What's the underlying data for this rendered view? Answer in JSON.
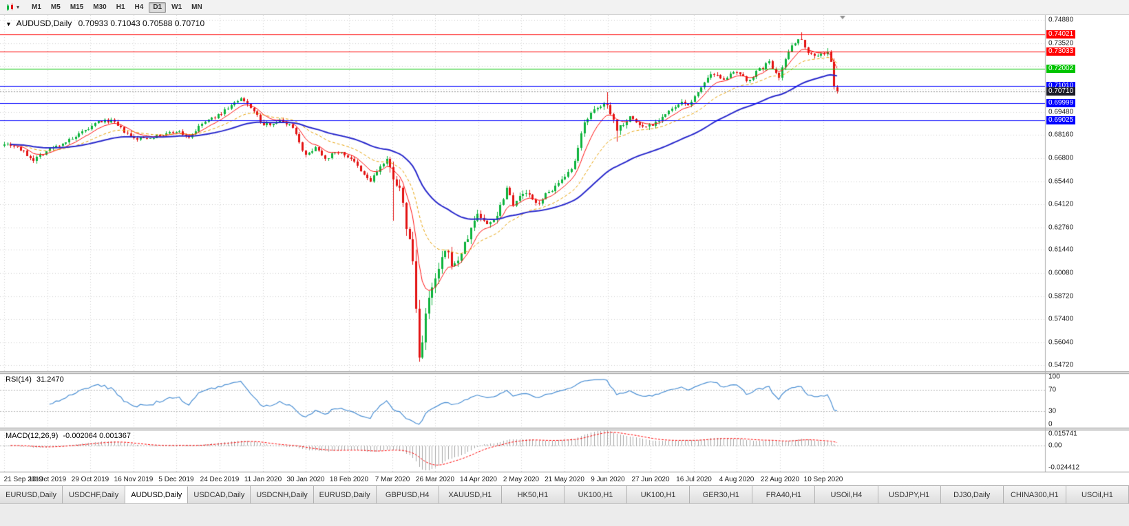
{
  "toolbar": {
    "timeframes": [
      {
        "label": "M1",
        "active": false
      },
      {
        "label": "M5",
        "active": false
      },
      {
        "label": "M15",
        "active": false
      },
      {
        "label": "M30",
        "active": false
      },
      {
        "label": "H1",
        "active": false
      },
      {
        "label": "H4",
        "active": false
      },
      {
        "label": "D1",
        "active": true
      },
      {
        "label": "W1",
        "active": false
      },
      {
        "label": "MN",
        "active": false
      }
    ]
  },
  "chart": {
    "collapse_icon": "▼",
    "title_symbol": "AUDUSD,Daily",
    "ohlc_text": "0.70933 0.71043 0.70588 0.70710",
    "ohlc": {
      "open": "0.70933",
      "high": "0.71043",
      "low": "0.70588",
      "close": "0.70710"
    }
  },
  "chart_data": {
    "type": "candlestick",
    "symbol": "AUDUSD",
    "timeframe": "Daily",
    "grid": true,
    "x_labels": [
      "21 Sep 2019",
      "10 Oct 2019",
      "29 Oct 2019",
      "16 Nov 2019",
      "5 Dec 2019",
      "24 Dec 2019",
      "11 Jan 2020",
      "30 Jan 2020",
      "18 Feb 2020",
      "7 Mar 2020",
      "26 Mar 2020",
      "14 Apr 2020",
      "2 May 2020",
      "21 May 2020",
      "9 Jun 2020",
      "27 Jun 2020",
      "16 Jul 2020",
      "4 Aug 2020",
      "22 Aug 2020",
      "10 Sep 2020"
    ],
    "price_axis": {
      "min": 0.5435,
      "max": 0.7515,
      "labels": [
        "0.74880",
        "0.73520",
        "0.72160",
        "0.70800",
        "0.69480",
        "0.68160",
        "0.66800",
        "0.65440",
        "0.64120",
        "0.62760",
        "0.61440",
        "0.60080",
        "0.58720",
        "0.57400",
        "0.56040",
        "0.54720"
      ]
    },
    "hlines": [
      {
        "value": 0.74021,
        "label": "0.74021",
        "color": "#ff0000"
      },
      {
        "value": 0.73033,
        "label": "0.73033",
        "color": "#ff0000"
      },
      {
        "value": 0.72002,
        "label": "0.72002",
        "color": "#00c400"
      },
      {
        "value": 0.7101,
        "label": "0.71010",
        "color": "#0000ff"
      },
      {
        "value": 0.69999,
        "label": "0.69999",
        "color": "#0000ff"
      },
      {
        "value": 0.69025,
        "label": "0.69025",
        "color": "#0000ff"
      }
    ],
    "current_price": {
      "value": 0.7071,
      "label": "0.70710",
      "tag_color": "#1c1c28",
      "line_color": "#8a8a8a"
    },
    "moving_averages": [
      {
        "period": 8,
        "color": "#ff1010",
        "width": 1,
        "dash": []
      },
      {
        "period": 21,
        "color": "#e8a000",
        "width": 1,
        "dash": [
          4,
          3
        ]
      },
      {
        "period": 50,
        "color": "#2828cc",
        "width": 2,
        "dash": []
      }
    ],
    "candles": {
      "num_bars": 258,
      "bars_per_label": 13.3,
      "seed": 7,
      "up_color": "#0db33c",
      "down_color": "#e31212",
      "anchors": [
        [
          0,
          0.677,
          0.003
        ],
        [
          4,
          0.6745,
          0.003
        ],
        [
          7,
          0.67,
          0.0032
        ],
        [
          9,
          0.6672,
          0.0032
        ],
        [
          13,
          0.672,
          0.003
        ],
        [
          17,
          0.676,
          0.0028
        ],
        [
          21,
          0.679,
          0.0028
        ],
        [
          25,
          0.684,
          0.0028
        ],
        [
          29,
          0.689,
          0.0028
        ],
        [
          33,
          0.69,
          0.0026
        ],
        [
          36,
          0.685,
          0.0026
        ],
        [
          40,
          0.679,
          0.0026
        ],
        [
          44,
          0.68,
          0.0024
        ],
        [
          48,
          0.681,
          0.0024
        ],
        [
          53,
          0.684,
          0.0026
        ],
        [
          57,
          0.68,
          0.0026
        ],
        [
          61,
          0.688,
          0.0026
        ],
        [
          66,
          0.693,
          0.0026
        ],
        [
          70,
          0.699,
          0.0026
        ],
        [
          73,
          0.7023,
          0.0026
        ],
        [
          76,
          0.698,
          0.0028
        ],
        [
          80,
          0.687,
          0.0028
        ],
        [
          85,
          0.69,
          0.0025
        ],
        [
          89,
          0.6865,
          0.0025
        ],
        [
          93,
          0.669,
          0.003
        ],
        [
          96,
          0.6748,
          0.0028
        ],
        [
          99,
          0.668,
          0.0028
        ],
        [
          103,
          0.6718,
          0.0026
        ],
        [
          107,
          0.668,
          0.0028
        ],
        [
          110,
          0.66,
          0.003
        ],
        [
          113,
          0.6545,
          0.0038
        ],
        [
          116,
          0.663,
          0.0042
        ],
        [
          118,
          0.666,
          0.005
        ],
        [
          120,
          0.658,
          0.0085
        ],
        [
          122,
          0.649,
          0.0075
        ],
        [
          124,
          0.629,
          0.011
        ],
        [
          126,
          0.608,
          0.013
        ],
        [
          128,
          0.551,
          0.015
        ],
        [
          130,
          0.577,
          0.0125
        ],
        [
          133,
          0.597,
          0.01
        ],
        [
          136,
          0.613,
          0.0085
        ],
        [
          139,
          0.605,
          0.0075
        ],
        [
          142,
          0.617,
          0.0065
        ],
        [
          146,
          0.636,
          0.0058
        ],
        [
          149,
          0.629,
          0.0052
        ],
        [
          152,
          0.635,
          0.0048
        ],
        [
          155,
          0.651,
          0.0046
        ],
        [
          157,
          0.642,
          0.0045
        ],
        [
          161,
          0.648,
          0.0042
        ],
        [
          164,
          0.641,
          0.004
        ],
        [
          169,
          0.65,
          0.0038
        ],
        [
          173,
          0.656,
          0.0038
        ],
        [
          176,
          0.665,
          0.004
        ],
        [
          179,
          0.69,
          0.0042
        ],
        [
          183,
          0.697,
          0.0042
        ],
        [
          186,
          0.7,
          0.0044
        ],
        [
          189,
          0.685,
          0.005
        ],
        [
          193,
          0.692,
          0.004
        ],
        [
          197,
          0.686,
          0.0038
        ],
        [
          200,
          0.688,
          0.0036
        ],
        [
          205,
          0.695,
          0.0034
        ],
        [
          209,
          0.7,
          0.0034
        ],
        [
          212,
          0.7,
          0.0032
        ],
        [
          215,
          0.71,
          0.0034
        ],
        [
          218,
          0.716,
          0.0034
        ],
        [
          222,
          0.715,
          0.0032
        ],
        [
          226,
          0.718,
          0.0032
        ],
        [
          229,
          0.713,
          0.0032
        ],
        [
          232,
          0.718,
          0.0032
        ],
        [
          236,
          0.724,
          0.0032
        ],
        [
          239,
          0.716,
          0.0032
        ],
        [
          243,
          0.735,
          0.0034
        ],
        [
          246,
          0.7375,
          0.0036
        ],
        [
          248,
          0.73,
          0.0036
        ],
        [
          250,
          0.728,
          0.0032
        ],
        [
          253,
          0.729,
          0.0032
        ],
        [
          254,
          0.73,
          0.0034
        ],
        [
          255,
          0.724,
          0.004
        ],
        [
          256,
          0.709,
          0.0046
        ],
        [
          257,
          0.7071,
          0.004
        ]
      ],
      "spikes": [
        {
          "bar": 120,
          "low": 0.6313
        },
        {
          "bar": 128,
          "low": 0.5506
        },
        {
          "bar": 186,
          "high": 0.7064
        },
        {
          "bar": 189,
          "low": 0.6777
        },
        {
          "bar": 246,
          "high": 0.7413
        }
      ],
      "last_candle": {
        "open": 0.70933,
        "high": 0.71043,
        "low": 0.70588,
        "close": 0.7071
      }
    },
    "rsi": {
      "label": "RSI(14)",
      "value_text": "31.2470",
      "period": 14,
      "color": "#4a8fd4",
      "levels": [
        70,
        30
      ],
      "axis_labels": [
        "100",
        "70",
        "30",
        "0"
      ]
    },
    "macd": {
      "label": "MACD(12,26,9)",
      "values_text": "-0.002064 0.001367",
      "fast": 12,
      "slow": 26,
      "signal_period": 9,
      "histogram_color": "#a6a6a6",
      "signal_color": "#ff0000",
      "axis_labels": [
        "0.015741",
        "0.00",
        "-0.024412"
      ]
    }
  },
  "tabs": [
    {
      "label": "EURUSD,Daily",
      "active": false
    },
    {
      "label": "USDCHF,Daily",
      "active": false
    },
    {
      "label": "AUDUSD,Daily",
      "active": true
    },
    {
      "label": "USDCAD,Daily",
      "active": false
    },
    {
      "label": "USDCNH,Daily",
      "active": false
    },
    {
      "label": "EURUSD,Daily",
      "active": false
    },
    {
      "label": "GBPUSD,H4",
      "active": false
    },
    {
      "label": "XAUUSD,H1",
      "active": false
    },
    {
      "label": "HK50,H1",
      "active": false
    },
    {
      "label": "UK100,H1",
      "active": false
    },
    {
      "label": "UK100,H1",
      "active": false
    },
    {
      "label": "GER30,H1",
      "active": false
    },
    {
      "label": "FRA40,H1",
      "active": false
    },
    {
      "label": "USOil,H4",
      "active": false
    },
    {
      "label": "USDJPY,H1",
      "active": false
    },
    {
      "label": "DJ30,Daily",
      "active": false
    },
    {
      "label": "CHINA300,H1",
      "active": false
    },
    {
      "label": "USOil,H1",
      "active": false
    }
  ]
}
